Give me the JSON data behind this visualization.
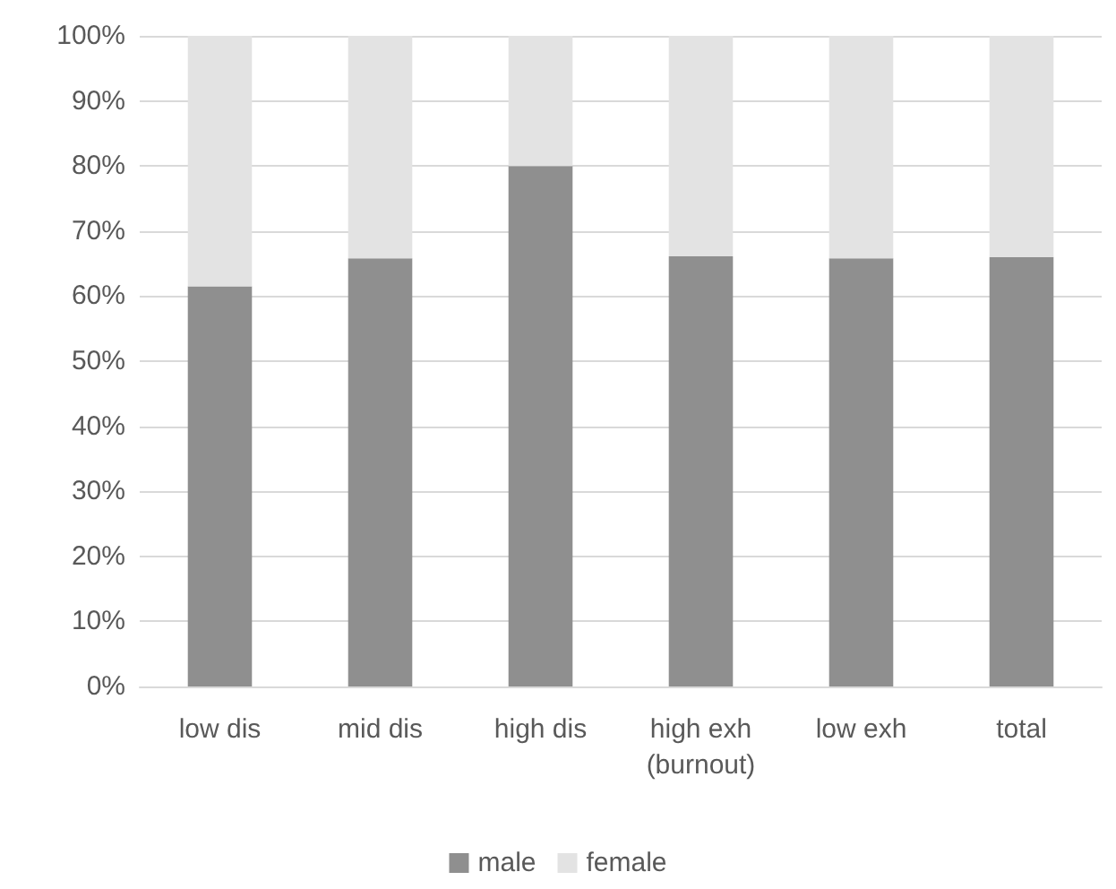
{
  "chart_data": {
    "type": "bar",
    "stacked": true,
    "categories": [
      "low dis",
      "mid dis",
      "high dis",
      "high exh\n(burnout)",
      "low exh",
      "total"
    ],
    "series": [
      {
        "name": "male",
        "color": "#8f8f8f",
        "values": [
          61.5,
          65.8,
          80,
          66.1,
          65.8,
          66
        ]
      },
      {
        "name": "female",
        "color": "#e3e3e3",
        "values": [
          38.5,
          34.2,
          20,
          33.9,
          34.2,
          34
        ]
      }
    ],
    "ylim": [
      0,
      100
    ],
    "yticks": [
      {
        "value": 0,
        "label": "0%"
      },
      {
        "value": 10,
        "label": "10%"
      },
      {
        "value": 20,
        "label": "20%"
      },
      {
        "value": 30,
        "label": "30%"
      },
      {
        "value": 40,
        "label": "40%"
      },
      {
        "value": 50,
        "label": "50%"
      },
      {
        "value": 60,
        "label": "60%"
      },
      {
        "value": 70,
        "label": "70%"
      },
      {
        "value": 80,
        "label": "80%"
      },
      {
        "value": 90,
        "label": "90%"
      },
      {
        "value": 100,
        "label": "100%"
      }
    ],
    "grid": "y",
    "legend": "bottom"
  }
}
